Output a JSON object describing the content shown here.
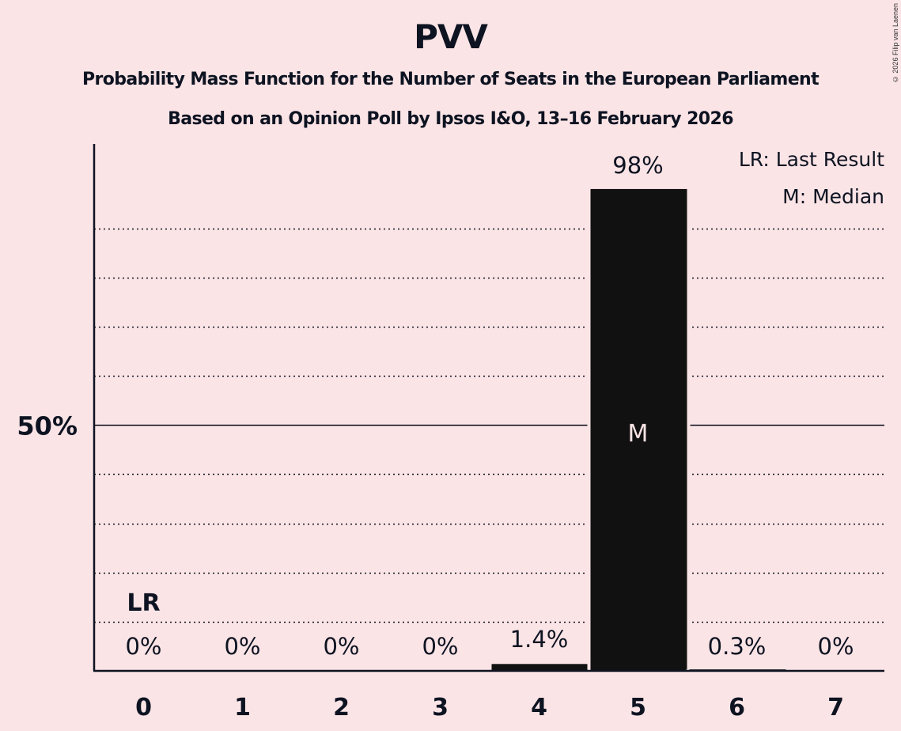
{
  "header": {
    "title": "PVV",
    "subtitle1": "Probability Mass Function for the Number of Seats in the European Parliament",
    "subtitle2": "Based on an Opinion Poll by Ipsos I&O, 13–16 February 2026",
    "copyright": "© 2026 Filip van Laenen"
  },
  "legend": {
    "lr": "LR: Last Result",
    "m": "M: Median"
  },
  "colors": {
    "background": "#fbe4e6",
    "bar": "#111111",
    "text": "#0d1321"
  },
  "chart_data": {
    "type": "bar",
    "title": "PVV",
    "subtitle": "Probability Mass Function for the Number of Seats in the European Parliament — Based on an Opinion Poll by Ipsos I&O, 13–16 February 2026",
    "xlabel": "",
    "ylabel": "",
    "categories": [
      "0",
      "1",
      "2",
      "3",
      "4",
      "5",
      "6",
      "7"
    ],
    "values": [
      0,
      0,
      0,
      0,
      1.4,
      98,
      0.3,
      0
    ],
    "value_labels": [
      "0%",
      "0%",
      "0%",
      "0%",
      "1.4%",
      "98%",
      "0.3%",
      "0%"
    ],
    "ylim": [
      0,
      100
    ],
    "yticks_labeled": [
      {
        "value": 50,
        "label": "50%"
      }
    ],
    "gridlines": [
      10,
      20,
      30,
      40,
      50,
      60,
      70,
      80,
      90
    ],
    "grid": true,
    "annotations": [
      {
        "category": "0",
        "text": "LR",
        "meaning": "Last Result"
      },
      {
        "category": "5",
        "text": "M",
        "meaning": "Median"
      }
    ],
    "legend_position": "top-right"
  }
}
